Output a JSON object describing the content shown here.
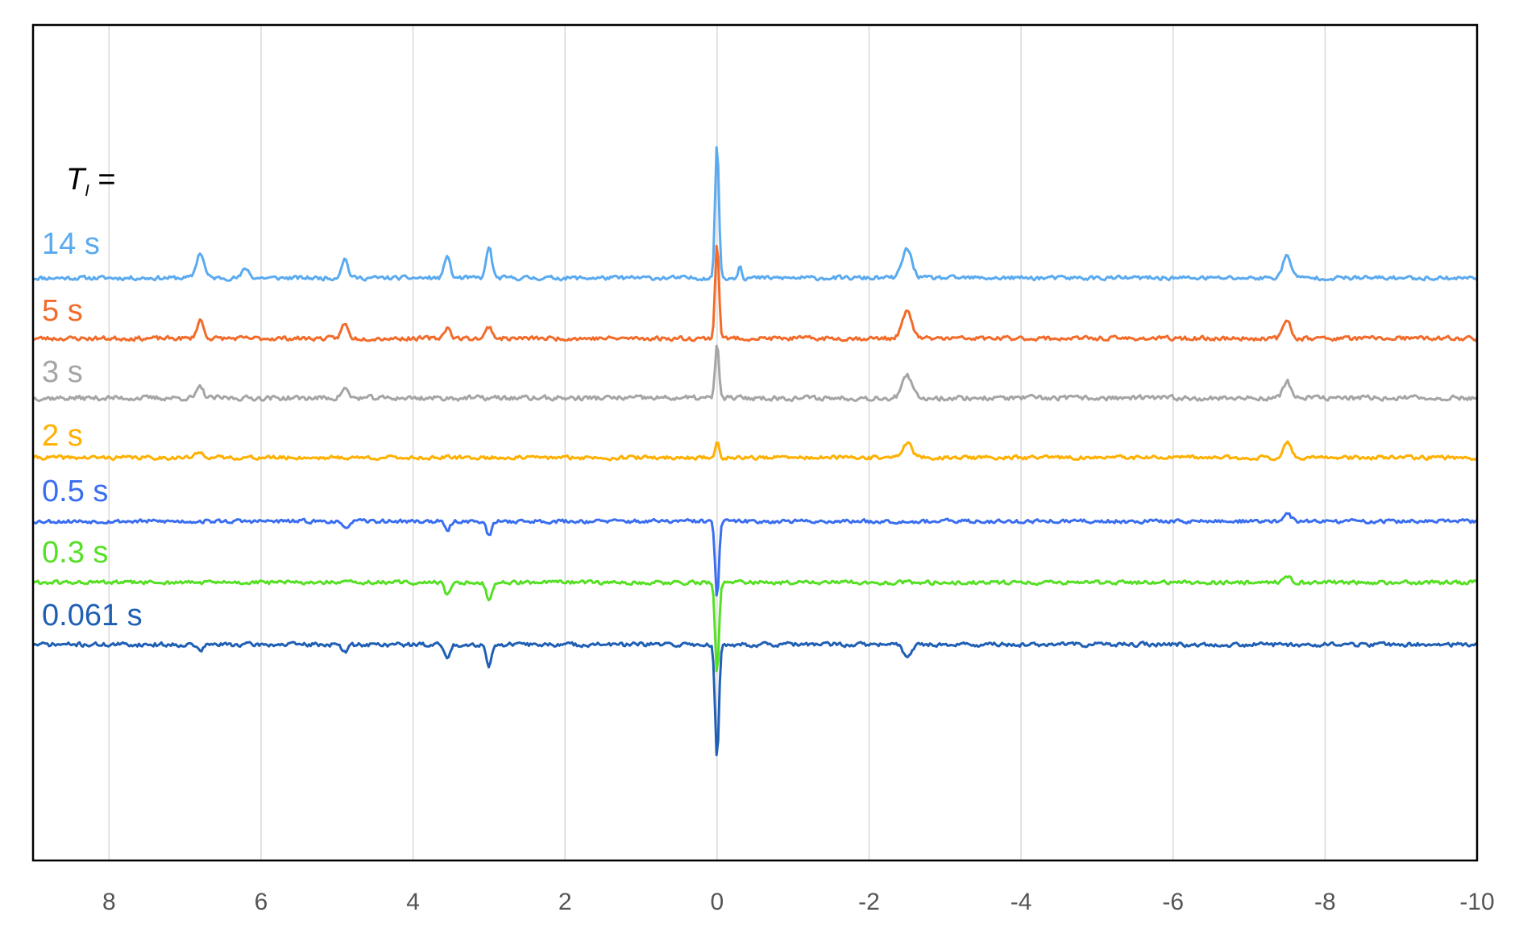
{
  "chart_data": {
    "type": "line",
    "title": "",
    "xlabel": "",
    "ylabel": "",
    "xlim": [
      9,
      -10
    ],
    "x_reversed": true,
    "x_ticks": [
      8,
      6,
      4,
      2,
      0,
      -2,
      -4,
      -6,
      -8,
      -10
    ],
    "x_tick_labels": [
      "8",
      "6",
      "4",
      "2",
      "0",
      "-2",
      "-4",
      "-6",
      "-8",
      "-10"
    ],
    "vertical_grid": true,
    "horizontal_grid": false,
    "legend_header": {
      "main": "T",
      "sub": "I",
      "suffix": " ="
    },
    "series": [
      {
        "name": "14 s",
        "color": "#5aaaf0",
        "baseline": 0,
        "noise": 0.6,
        "seed": 11,
        "peaks": [
          {
            "x": 6.8,
            "h": 5.2,
            "w": 0.07
          },
          {
            "x": 6.2,
            "h": 2.0,
            "w": 0.06
          },
          {
            "x": 4.9,
            "h": 4.0,
            "w": 0.06
          },
          {
            "x": 3.55,
            "h": 4.8,
            "w": 0.05
          },
          {
            "x": 3.0,
            "h": 6.5,
            "w": 0.05
          },
          {
            "x": 0.0,
            "h": 28.0,
            "w": 0.035
          },
          {
            "x": -0.3,
            "h": 3.0,
            "w": 0.03
          },
          {
            "x": -2.5,
            "h": 6.0,
            "w": 0.09
          },
          {
            "x": -7.5,
            "h": 4.5,
            "w": 0.08
          }
        ]
      },
      {
        "name": "5 s",
        "color": "#f26b2a",
        "baseline": 0,
        "noise": 0.6,
        "seed": 23,
        "peaks": [
          {
            "x": 6.8,
            "h": 3.8,
            "w": 0.06
          },
          {
            "x": 4.9,
            "h": 3.0,
            "w": 0.06
          },
          {
            "x": 3.55,
            "h": 2.2,
            "w": 0.06
          },
          {
            "x": 3.0,
            "h": 2.4,
            "w": 0.06
          },
          {
            "x": 0.0,
            "h": 20.0,
            "w": 0.035
          },
          {
            "x": -2.5,
            "h": 5.5,
            "w": 0.09
          },
          {
            "x": -7.5,
            "h": 3.8,
            "w": 0.07
          }
        ]
      },
      {
        "name": "3 s",
        "color": "#a5a5a5",
        "baseline": 0,
        "noise": 0.7,
        "seed": 37,
        "peaks": [
          {
            "x": 6.8,
            "h": 2.2,
            "w": 0.06
          },
          {
            "x": 4.9,
            "h": 2.0,
            "w": 0.06
          },
          {
            "x": 0.0,
            "h": 11.0,
            "w": 0.035
          },
          {
            "x": -2.5,
            "h": 4.5,
            "w": 0.09
          },
          {
            "x": -7.5,
            "h": 3.5,
            "w": 0.07
          }
        ]
      },
      {
        "name": "2 s",
        "color": "#ffb000",
        "baseline": 0,
        "noise": 0.55,
        "seed": 41,
        "peaks": [
          {
            "x": 6.8,
            "h": 1.0,
            "w": 0.08
          },
          {
            "x": 0.0,
            "h": 3.2,
            "w": 0.035
          },
          {
            "x": -2.5,
            "h": 3.0,
            "w": 0.09
          },
          {
            "x": -7.5,
            "h": 3.2,
            "w": 0.07
          }
        ]
      },
      {
        "name": "0.5 s",
        "color": "#3a6ef0",
        "baseline": 0,
        "noise": 0.55,
        "seed": 53,
        "peaks": [
          {
            "x": 4.9,
            "h": -1.6,
            "w": 0.06
          },
          {
            "x": 3.55,
            "h": -2.0,
            "w": 0.05
          },
          {
            "x": 3.0,
            "h": -3.0,
            "w": 0.05
          },
          {
            "x": 0.0,
            "h": -16.0,
            "w": 0.035
          },
          {
            "x": -7.5,
            "h": 1.5,
            "w": 0.07
          }
        ]
      },
      {
        "name": "0.3 s",
        "color": "#55e024",
        "baseline": 0,
        "noise": 0.55,
        "seed": 61,
        "peaks": [
          {
            "x": 3.55,
            "h": -2.6,
            "w": 0.05
          },
          {
            "x": 3.0,
            "h": -3.8,
            "w": 0.05
          },
          {
            "x": 0.0,
            "h": -19.0,
            "w": 0.035
          },
          {
            "x": -7.5,
            "h": 1.2,
            "w": 0.07
          }
        ]
      },
      {
        "name": "0.061 s",
        "color": "#1f5fb4",
        "baseline": 0,
        "noise": 0.6,
        "seed": 71,
        "peaks": [
          {
            "x": 6.8,
            "h": -1.2,
            "w": 0.06
          },
          {
            "x": 4.9,
            "h": -1.5,
            "w": 0.06
          },
          {
            "x": 3.55,
            "h": -3.0,
            "w": 0.05
          },
          {
            "x": 3.0,
            "h": -4.2,
            "w": 0.05
          },
          {
            "x": 0.0,
            "h": -24.0,
            "w": 0.035
          },
          {
            "x": -2.5,
            "h": -2.5,
            "w": 0.07
          }
        ]
      }
    ]
  }
}
